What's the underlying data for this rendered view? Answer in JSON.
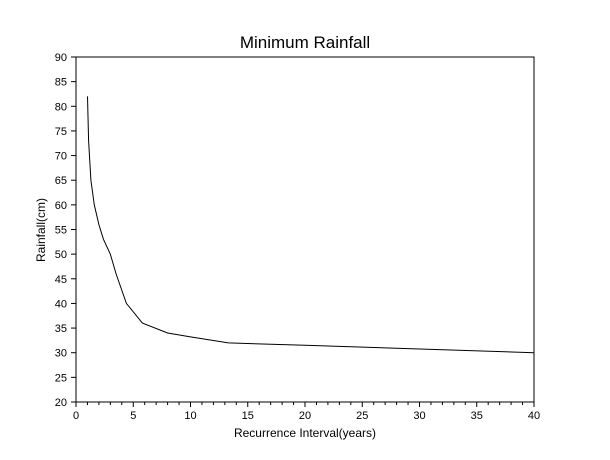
{
  "chart_data": {
    "type": "line",
    "title": "Minimum Rainfall",
    "xlabel": "Recurrence Interval(years)",
    "ylabel": "Rainfall(cm)",
    "xlim": [
      0,
      40
    ],
    "ylim": [
      20,
      90
    ],
    "xticks": [
      0,
      5,
      10,
      15,
      20,
      25,
      30,
      35,
      40
    ],
    "yticks": [
      20,
      25,
      30,
      35,
      40,
      45,
      50,
      55,
      60,
      65,
      70,
      75,
      80,
      85,
      90
    ],
    "grid": false,
    "series": [
      {
        "color": "#000000",
        "x": [
          1.0,
          1.1,
          1.3,
          1.6,
          2.0,
          2.4,
          3.0,
          3.5,
          4.4,
          5.8,
          8.0,
          10.0,
          13.3,
          20.0,
          40.0
        ],
        "y": [
          82,
          73,
          65,
          60,
          56,
          53,
          50,
          46,
          40,
          36,
          34,
          33.2,
          32,
          31.5,
          30
        ]
      }
    ]
  }
}
